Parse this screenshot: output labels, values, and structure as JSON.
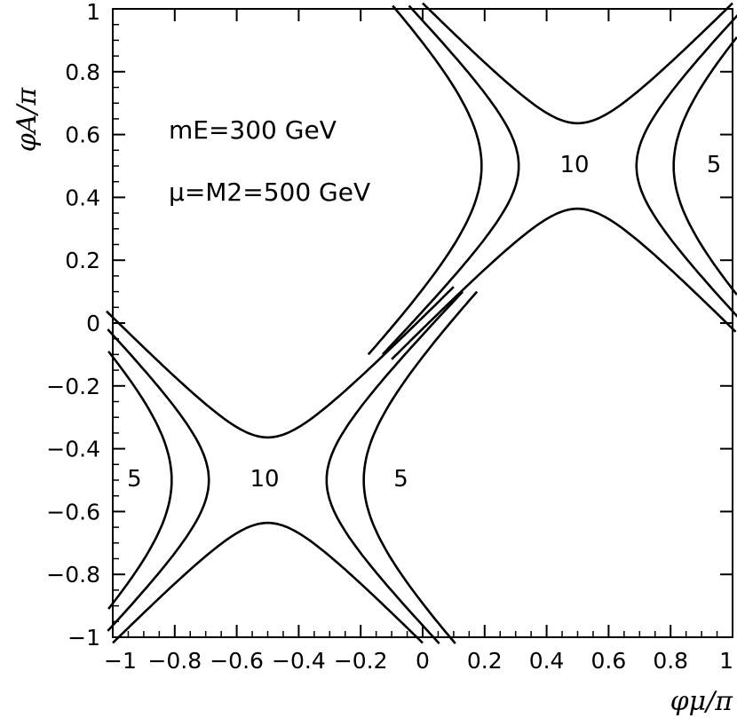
{
  "chart_data": {
    "type": "line",
    "title": "",
    "xlabel": "φμ/π",
    "ylabel": "φA/π",
    "xlim": [
      -1,
      1
    ],
    "ylim": [
      -1,
      1
    ],
    "grid": false,
    "x_ticks": [
      "−1",
      "−0.8",
      "−0.6",
      "−0.4",
      "−0.2",
      "0",
      "0.2",
      "0.4",
      "0.6",
      "0.8",
      "1"
    ],
    "y_ticks": [
      "−1",
      "−0.8",
      "−0.6",
      "−0.4",
      "−0.2",
      "0",
      "0.2",
      "0.4",
      "0.6",
      "0.8",
      "1"
    ],
    "annotations": {
      "line1": "mE=300 GeV",
      "line2": "μ=M2=500 GeV"
    },
    "contour_levels": [
      {
        "label": "10",
        "center": [
          0.5,
          0.5
        ],
        "gap_y": 0.136
      },
      {
        "label": "10",
        "center": [
          -0.5,
          -0.5
        ],
        "gap_y": 0.136
      },
      {
        "label": "5",
        "center": [
          0.5,
          0.5
        ],
        "x_at_center": 0.19
      },
      {
        "label": "5",
        "center": [
          0.5,
          0.5
        ],
        "x_at_center": 0.81
      },
      {
        "label": "5",
        "center": [
          -0.5,
          -0.5
        ],
        "x_at_center": -0.19
      },
      {
        "label": "5",
        "center": [
          -0.5,
          -0.5
        ],
        "x_at_center": -0.81
      }
    ],
    "contour_labels": [
      {
        "text": "10",
        "x": 0.49,
        "y": 0.48
      },
      {
        "text": "5",
        "x": 0.94,
        "y": 0.48
      },
      {
        "text": "5",
        "x": -0.93,
        "y": -0.52
      },
      {
        "text": "10",
        "x": -0.51,
        "y": -0.52
      },
      {
        "text": "5",
        "x": -0.07,
        "y": -0.52
      }
    ]
  }
}
